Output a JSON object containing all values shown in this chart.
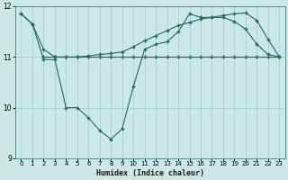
{
  "xlabel": "Humidex (Indice chaleur)",
  "background_color": "#cce8e6",
  "grid_color": "#9dcfcc",
  "line_color": "#1c6b62",
  "xlim": [
    -0.5,
    23.5
  ],
  "ylim": [
    9,
    12
  ],
  "yticks": [
    9,
    10,
    11,
    12
  ],
  "xticks": [
    0,
    1,
    2,
    3,
    4,
    5,
    6,
    7,
    8,
    9,
    10,
    11,
    12,
    13,
    14,
    15,
    16,
    17,
    18,
    19,
    20,
    21,
    22,
    23
  ],
  "x_jagged": [
    0,
    1,
    2,
    3,
    4,
    5,
    6,
    7,
    8,
    9,
    10,
    11,
    12,
    13,
    14,
    15,
    16,
    17,
    18,
    19,
    20,
    21,
    22,
    23
  ],
  "y_jagged": [
    11.85,
    11.65,
    10.95,
    10.95,
    10.0,
    10.0,
    9.8,
    9.55,
    9.38,
    9.58,
    10.42,
    11.15,
    11.25,
    11.3,
    11.5,
    11.85,
    11.78,
    11.78,
    11.78,
    11.7,
    11.55,
    11.25,
    11.05,
    11.0
  ],
  "x_curve": [
    0,
    1,
    2,
    3,
    4,
    5,
    6,
    7,
    8,
    9,
    10,
    11,
    12,
    13,
    14,
    15,
    16,
    17,
    18,
    19,
    20,
    21,
    22,
    23
  ],
  "y_curve": [
    11.85,
    11.65,
    11.15,
    11.0,
    11.0,
    11.0,
    11.02,
    11.05,
    11.07,
    11.1,
    11.2,
    11.32,
    11.42,
    11.52,
    11.62,
    11.68,
    11.75,
    11.78,
    11.82,
    11.85,
    11.87,
    11.72,
    11.35,
    11.0
  ],
  "x_flat": [
    2,
    3,
    4,
    5,
    6,
    7,
    8,
    9,
    10,
    11,
    12,
    13,
    14,
    15,
    16,
    17,
    18,
    19,
    20,
    21,
    22,
    23
  ],
  "y_flat": [
    11.0,
    11.0,
    11.0,
    11.0,
    11.0,
    11.0,
    11.0,
    11.0,
    11.0,
    11.0,
    11.0,
    11.0,
    11.0,
    11.0,
    11.0,
    11.0,
    11.0,
    11.0,
    11.0,
    11.0,
    11.0,
    11.0
  ]
}
